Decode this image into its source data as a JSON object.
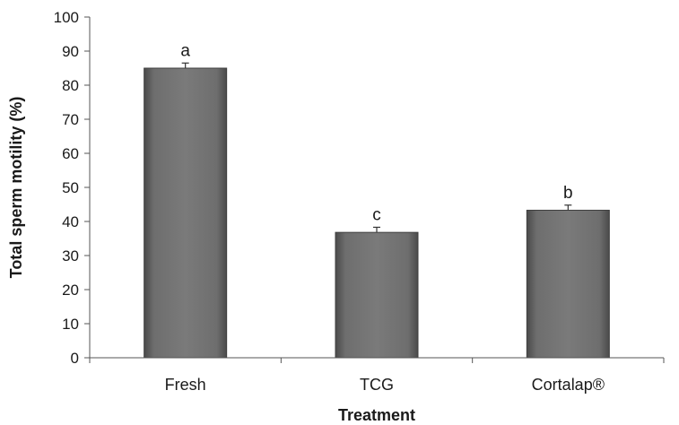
{
  "chart_data": {
    "type": "bar",
    "title": "",
    "xlabel": "Treatment",
    "ylabel": "Total sperm motility (%)",
    "categories": [
      "Fresh",
      "TCG",
      "Cortalap®"
    ],
    "values": [
      85,
      36.8,
      43.3
    ],
    "errors": [
      1.5,
      1.5,
      1.5
    ],
    "significance_labels": [
      "a",
      "c",
      "b"
    ],
    "ylim": [
      0,
      100
    ],
    "yticks": [
      "0",
      "10",
      "20",
      "30",
      "40",
      "50",
      "60",
      "70",
      "80",
      "90",
      "100"
    ],
    "grid": false,
    "legend": "none",
    "colors": {
      "bar": "#747474",
      "bar_dark": "#4a4a4a",
      "axis": "#555555"
    }
  }
}
